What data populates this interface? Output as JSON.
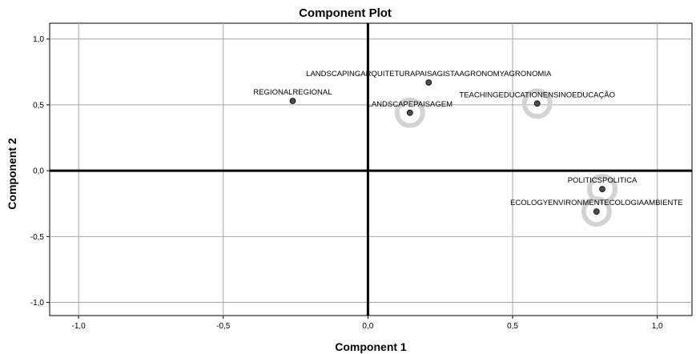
{
  "chart_data": {
    "type": "scatter",
    "title": "Component Plot",
    "xlabel": "Component 1",
    "ylabel": "Component 2",
    "xlim": [
      -1.1,
      1.12
    ],
    "ylim": [
      -1.1,
      1.12
    ],
    "x_ticks": [
      -1.0,
      -0.5,
      0.0,
      0.5,
      1.0
    ],
    "x_tick_labels": [
      "-1,0",
      "-0,5",
      "0,0",
      "0,5",
      "1,0"
    ],
    "y_ticks": [
      -1.0,
      -0.5,
      0.0,
      0.5,
      1.0
    ],
    "y_tick_labels": [
      "-1,0",
      "-0,5",
      "0,0",
      "0,5",
      "1,0"
    ],
    "grid": true,
    "marker_color": "#4d4d4d",
    "highlight_ring_color": "#d3d3d3",
    "points": [
      {
        "label": "LANDSCAPINGARQUITETURAPAISAGISTAAGRONOMYAGRONOMIA",
        "x": 0.21,
        "y": 0.67,
        "highlight": false,
        "label_pos": "above"
      },
      {
        "label": "REGIONALREGIONAL",
        "x": -0.26,
        "y": 0.53,
        "highlight": false,
        "label_pos": "above"
      },
      {
        "label": "LANDSCAPEPAISAGEM",
        "x": 0.145,
        "y": 0.44,
        "highlight": true,
        "label_pos": "above"
      },
      {
        "label": "TEACHINGEDUCATIONENSINOEDUCAÇÃO",
        "x": 0.585,
        "y": 0.51,
        "highlight": true,
        "label_pos": "above"
      },
      {
        "label": "POLITICSPOLITICA",
        "x": 0.81,
        "y": -0.14,
        "highlight": true,
        "label_pos": "above"
      },
      {
        "label": "ECOLOGYENVIRONMENTECOLOGIAAMBIENTE",
        "x": 0.79,
        "y": -0.31,
        "highlight": true,
        "label_pos": "above"
      }
    ]
  }
}
